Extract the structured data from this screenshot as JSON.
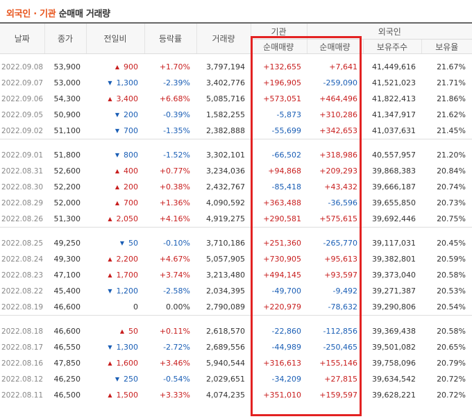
{
  "title": {
    "part1": "외국인",
    "separator": " · ",
    "part2": "기관",
    "part3": " 순매매 거래량"
  },
  "headers": {
    "date": "날짜",
    "close": "종가",
    "change": "전일비",
    "rate": "등락률",
    "volume": "거래량",
    "institution_group": "기관",
    "institution_net": "순매매량",
    "foreign_group": "외국인",
    "foreign_net": "순매매량",
    "foreign_shares": "보유주수",
    "foreign_ratio": "보유율"
  },
  "colors": {
    "up": "#c81e1e",
    "down": "#1a5eb5",
    "highlight_box": "#e32222",
    "title_accent": "#e8551d"
  },
  "groups": [
    [
      {
        "date": "2022.09.08",
        "close": "53,900",
        "dir": "up",
        "change": "900",
        "rate": "+1.70%",
        "volume": "3,797,194",
        "inst": "+132,655",
        "foreign": "+7,641",
        "shares": "41,449,616",
        "ratio": "21.67%"
      },
      {
        "date": "2022.09.07",
        "close": "53,000",
        "dir": "down",
        "change": "1,300",
        "rate": "-2.39%",
        "volume": "3,402,776",
        "inst": "+196,905",
        "foreign": "-259,090",
        "shares": "41,521,023",
        "ratio": "21.71%"
      },
      {
        "date": "2022.09.06",
        "close": "54,300",
        "dir": "up",
        "change": "3,400",
        "rate": "+6.68%",
        "volume": "5,085,716",
        "inst": "+573,051",
        "foreign": "+464,496",
        "shares": "41,822,413",
        "ratio": "21.86%"
      },
      {
        "date": "2022.09.05",
        "close": "50,900",
        "dir": "down",
        "change": "200",
        "rate": "-0.39%",
        "volume": "1,582,255",
        "inst": "-5,873",
        "foreign": "+310,286",
        "shares": "41,347,917",
        "ratio": "21.62%"
      },
      {
        "date": "2022.09.02",
        "close": "51,100",
        "dir": "down",
        "change": "700",
        "rate": "-1.35%",
        "volume": "2,382,888",
        "inst": "-55,699",
        "foreign": "+342,653",
        "shares": "41,037,631",
        "ratio": "21.45%"
      }
    ],
    [
      {
        "date": "2022.09.01",
        "close": "51,800",
        "dir": "down",
        "change": "800",
        "rate": "-1.52%",
        "volume": "3,302,101",
        "inst": "-66,502",
        "foreign": "+318,986",
        "shares": "40,557,957",
        "ratio": "21.20%"
      },
      {
        "date": "2022.08.31",
        "close": "52,600",
        "dir": "up",
        "change": "400",
        "rate": "+0.77%",
        "volume": "3,234,036",
        "inst": "+94,868",
        "foreign": "+209,293",
        "shares": "39,868,383",
        "ratio": "20.84%"
      },
      {
        "date": "2022.08.30",
        "close": "52,200",
        "dir": "up",
        "change": "200",
        "rate": "+0.38%",
        "volume": "2,432,767",
        "inst": "-85,418",
        "foreign": "+43,432",
        "shares": "39,666,187",
        "ratio": "20.74%"
      },
      {
        "date": "2022.08.29",
        "close": "52,000",
        "dir": "up",
        "change": "700",
        "rate": "+1.36%",
        "volume": "4,090,592",
        "inst": "+363,488",
        "foreign": "-36,596",
        "shares": "39,655,850",
        "ratio": "20.73%"
      },
      {
        "date": "2022.08.26",
        "close": "51,300",
        "dir": "up",
        "change": "2,050",
        "rate": "+4.16%",
        "volume": "4,919,275",
        "inst": "+290,581",
        "foreign": "+575,615",
        "shares": "39,692,446",
        "ratio": "20.75%"
      }
    ],
    [
      {
        "date": "2022.08.25",
        "close": "49,250",
        "dir": "down",
        "change": "50",
        "rate": "-0.10%",
        "volume": "3,710,186",
        "inst": "+251,360",
        "foreign": "-265,770",
        "shares": "39,117,031",
        "ratio": "20.45%"
      },
      {
        "date": "2022.08.24",
        "close": "49,300",
        "dir": "up",
        "change": "2,200",
        "rate": "+4.67%",
        "volume": "5,057,905",
        "inst": "+730,905",
        "foreign": "+95,613",
        "shares": "39,382,801",
        "ratio": "20.59%"
      },
      {
        "date": "2022.08.23",
        "close": "47,100",
        "dir": "up",
        "change": "1,700",
        "rate": "+3.74%",
        "volume": "3,213,480",
        "inst": "+494,145",
        "foreign": "+93,597",
        "shares": "39,373,040",
        "ratio": "20.58%"
      },
      {
        "date": "2022.08.22",
        "close": "45,400",
        "dir": "down",
        "change": "1,200",
        "rate": "-2.58%",
        "volume": "2,034,395",
        "inst": "-49,700",
        "foreign": "-9,492",
        "shares": "39,271,387",
        "ratio": "20.53%"
      },
      {
        "date": "2022.08.19",
        "close": "46,600",
        "dir": "flat",
        "change": "0",
        "rate": "0.00%",
        "volume": "2,790,089",
        "inst": "+220,979",
        "foreign": "-78,632",
        "shares": "39,290,806",
        "ratio": "20.54%"
      }
    ],
    [
      {
        "date": "2022.08.18",
        "close": "46,600",
        "dir": "up",
        "change": "50",
        "rate": "+0.11%",
        "volume": "2,618,570",
        "inst": "-22,860",
        "foreign": "-112,856",
        "shares": "39,369,438",
        "ratio": "20.58%"
      },
      {
        "date": "2022.08.17",
        "close": "46,550",
        "dir": "down",
        "change": "1,300",
        "rate": "-2.72%",
        "volume": "2,689,556",
        "inst": "-44,989",
        "foreign": "-250,465",
        "shares": "39,501,082",
        "ratio": "20.65%"
      },
      {
        "date": "2022.08.16",
        "close": "47,850",
        "dir": "up",
        "change": "1,600",
        "rate": "+3.46%",
        "volume": "5,940,544",
        "inst": "+316,613",
        "foreign": "+155,146",
        "shares": "39,758,096",
        "ratio": "20.79%"
      },
      {
        "date": "2022.08.12",
        "close": "46,250",
        "dir": "down",
        "change": "250",
        "rate": "-0.54%",
        "volume": "2,029,651",
        "inst": "-34,209",
        "foreign": "+27,815",
        "shares": "39,634,542",
        "ratio": "20.72%"
      },
      {
        "date": "2022.08.11",
        "close": "46,500",
        "dir": "up",
        "change": "1,500",
        "rate": "+3.33%",
        "volume": "4,074,235",
        "inst": "+351,010",
        "foreign": "+159,597",
        "shares": "39,628,221",
        "ratio": "20.72%"
      }
    ]
  ]
}
